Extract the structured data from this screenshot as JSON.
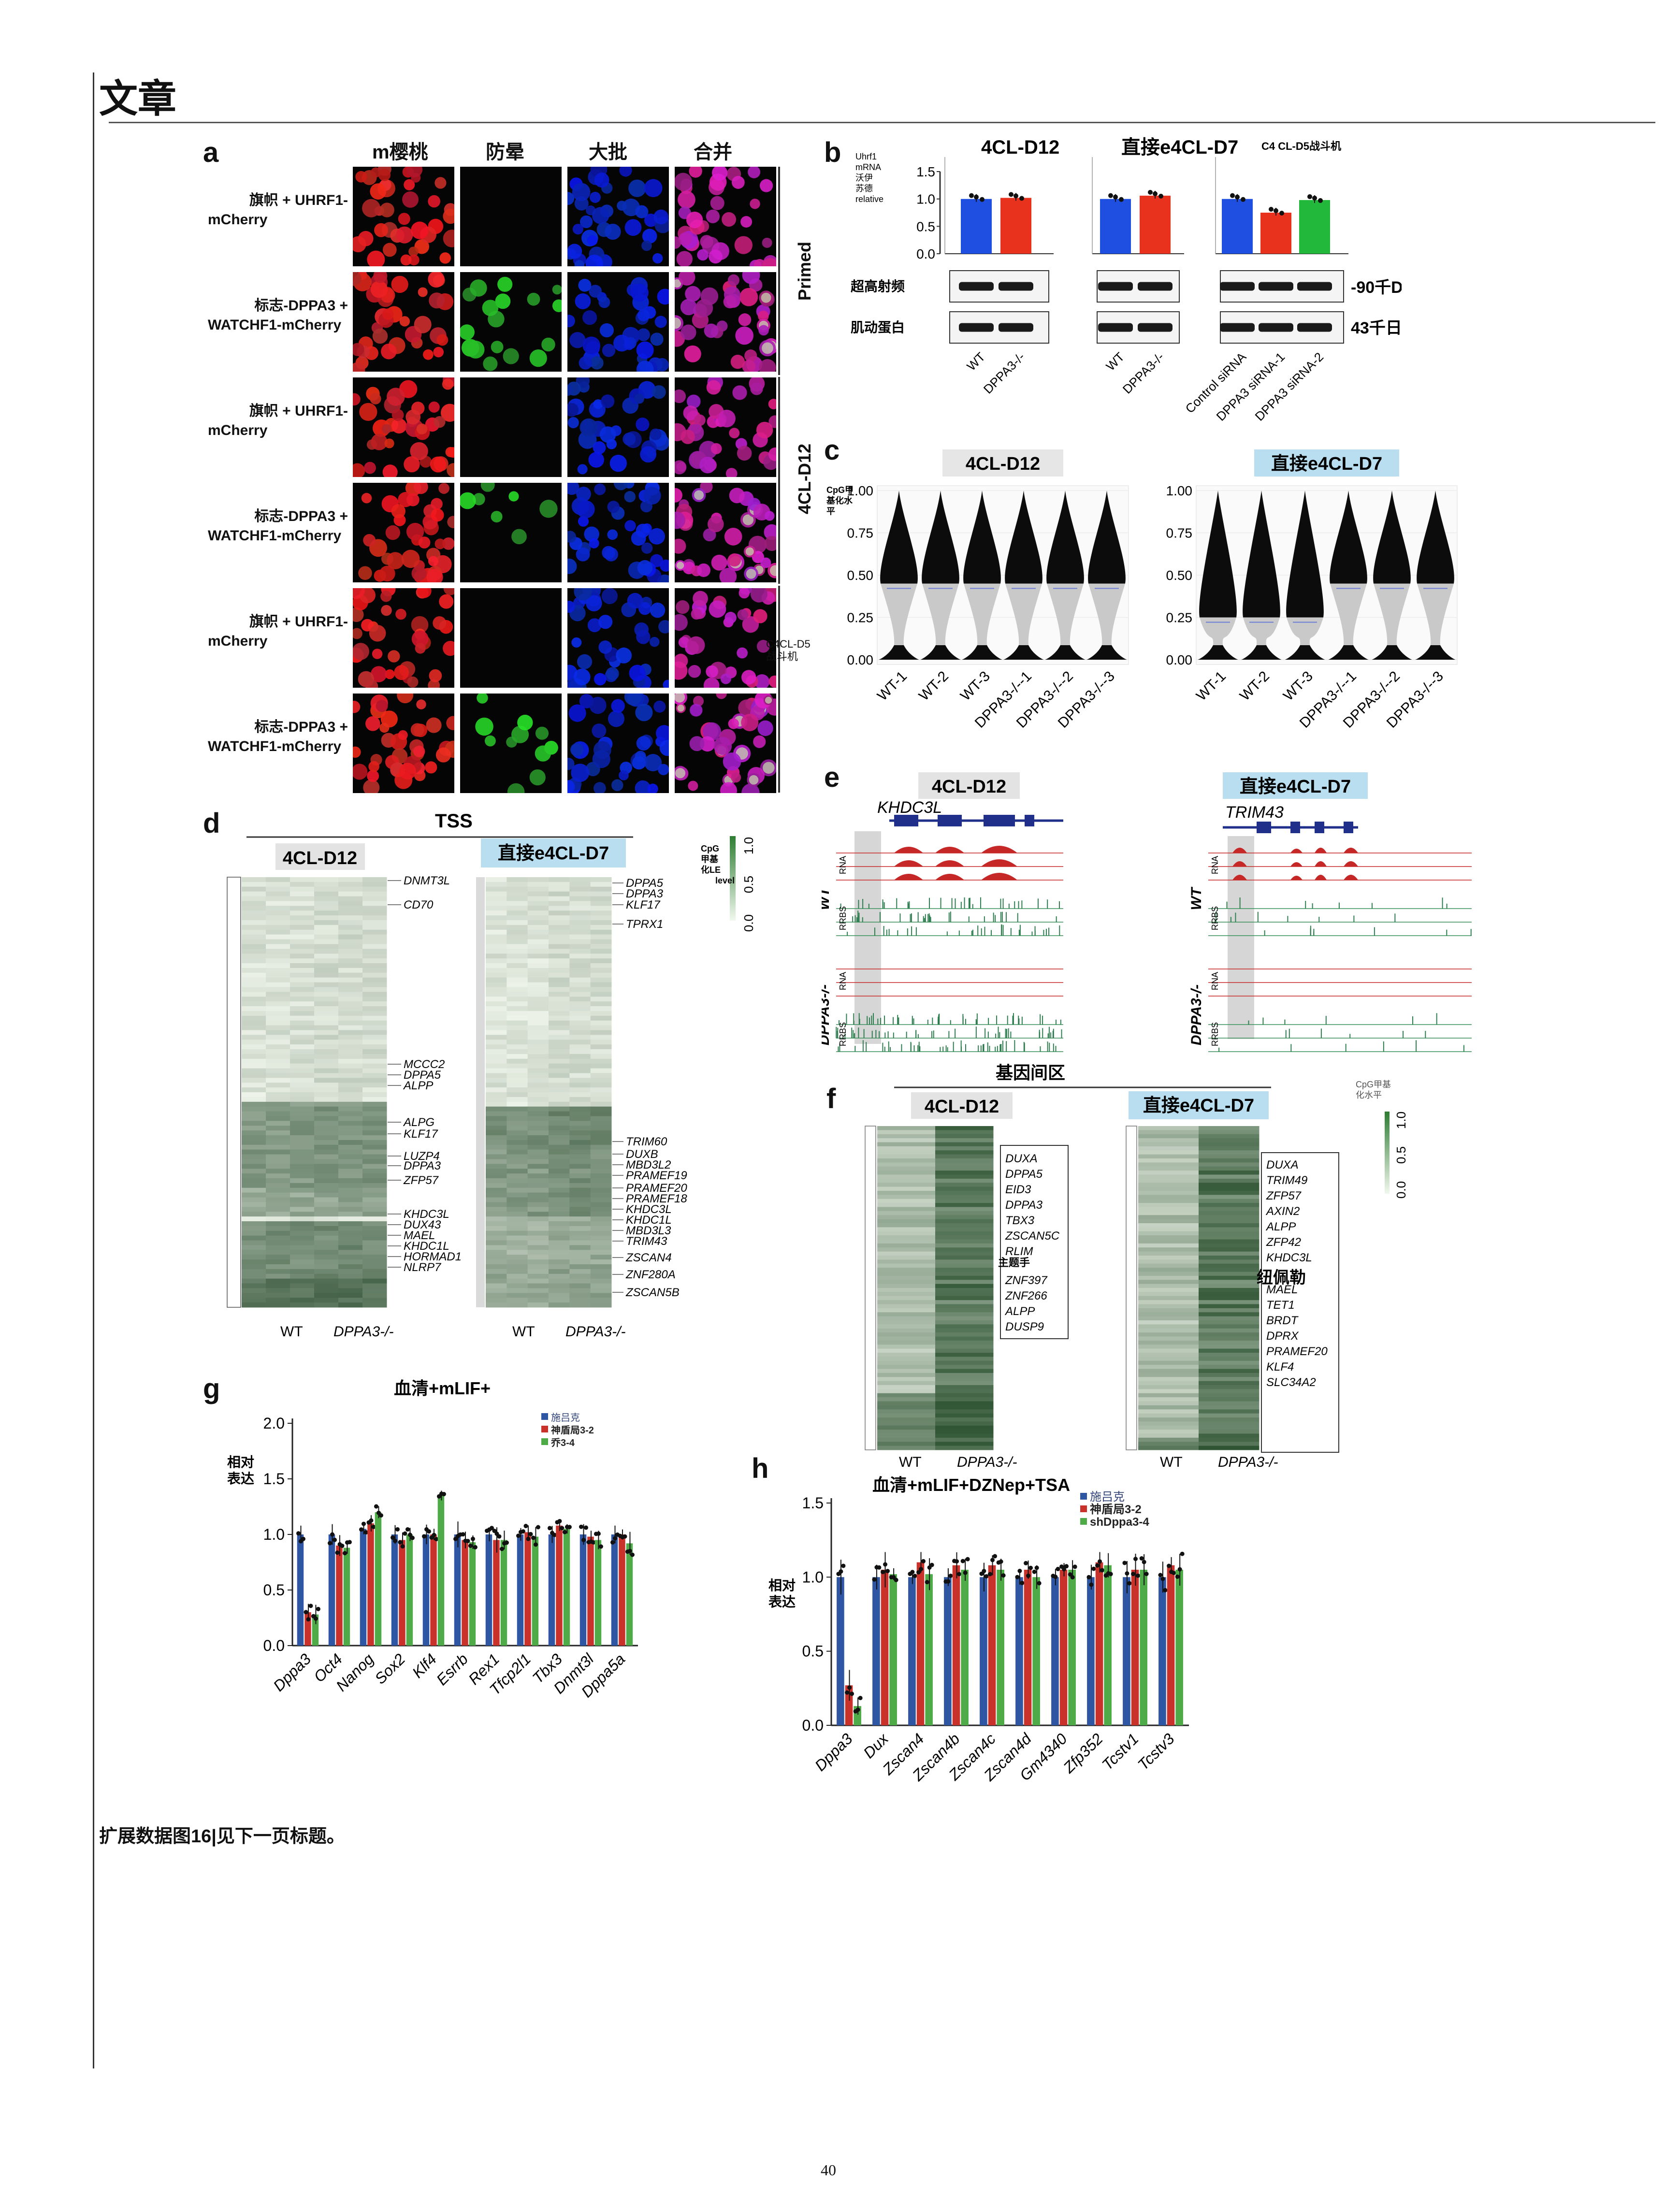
{
  "header": {
    "title": "文章",
    "page_number": "40"
  },
  "caption": "扩展数据图16|见下一页标题。",
  "panel_a": {
    "letter": "a",
    "columns": [
      "m樱桃",
      "防晕",
      "大批",
      "合并"
    ],
    "rows": [
      [
        "旗帜 + UHRF1-",
        "mCherry"
      ],
      [
        "标志-DPPA3 +",
        "WATCHF1-mCherry"
      ],
      [
        "旗帜 + UHRF1-",
        "mCherry"
      ],
      [
        "标志-DPPA3 +",
        "WATCHF1-mCherry"
      ],
      [
        "旗帜 + UHRF1-",
        "mCherry"
      ],
      [
        "标志-DPPA3 +",
        "WATCHF1-mCherry"
      ]
    ],
    "groups": [
      "Primed",
      "4CL-D12",
      "C4CL-D5",
      "战斗机"
    ]
  },
  "panel_b": {
    "letter": "b",
    "titles": [
      "4CL-D12",
      "直接e4CL-D7",
      "C4 CL-D5战斗机"
    ],
    "ylabel": [
      "Uhrf1",
      "mRNA",
      "沃伊",
      "苏德",
      "relative"
    ],
    "yticks": [
      "1.5",
      "1.0",
      "0.5",
      "0.0"
    ],
    "blot_labels": [
      "超高射频",
      "肌动蛋白"
    ],
    "kda": [
      "90千Da",
      "43千日"
    ],
    "xlabels": [
      "WT",
      "DPPA3-/-",
      "WT",
      "DPPA3-/-",
      "Control siRNA",
      "DPPA3 siRNA-1",
      "DPPA3 siRNA-2"
    ]
  },
  "panel_c": {
    "letter": "c",
    "titles": [
      "4CL-D12",
      "直接e4CL-D7"
    ],
    "ylabel": [
      "CpG甲",
      "基化水",
      "平"
    ],
    "yticks": [
      "1.00",
      "0.75",
      "0.50",
      "0.25",
      "0.00"
    ],
    "xlabels": [
      "WT-1",
      "WT-2",
      "WT-3",
      "DPPA3-/--1",
      "DPPA3-/--2",
      "DPPA3-/--3"
    ]
  },
  "panel_d": {
    "letter": "d",
    "top": "TSS",
    "titles": [
      "4CL-D12",
      "直接e4CL-D7"
    ],
    "legend_title": [
      "CpG",
      "甲基",
      "化LE",
      "level"
    ],
    "legend_ticks": [
      "1.0",
      "0.5",
      "0.0"
    ],
    "left_genes": [
      "DNMT3L",
      "CD70",
      "MCCC2",
      "DPPA5",
      "ALPP",
      "ALPG",
      "KLF17",
      "LUZP4",
      "DPPA3",
      "ZFP57",
      "KHDC3L",
      "DUX43",
      "MAEL",
      "KHDC1L",
      "HORMAD1",
      "NLRP7"
    ],
    "right_genes": [
      "DPPA5",
      "DPPA3",
      "KLF17",
      "TPRX1",
      "TRIM60",
      "DUXB",
      "MBD3L2",
      "PRAMEF19",
      "PRAMEF20",
      "PRAMEF18",
      "KHDC3L",
      "KHDC1L",
      "MBD3L3",
      "TRIM43",
      "ZSCAN4",
      "ZNF280A",
      "ZSCAN5B"
    ],
    "xlabels": [
      "WT",
      "DPPA3-/-"
    ]
  },
  "panel_e": {
    "letter": "e",
    "titles": [
      "4CL-D12",
      "直接e4CL-D7"
    ],
    "genes": [
      "KHDC3L",
      "TRIM43"
    ],
    "track_labels": [
      "RNA",
      "RRBS"
    ],
    "groups": [
      "WT",
      "DPPA3-/-"
    ]
  },
  "panel_f": {
    "letter": "f",
    "top": "基因间区",
    "titles": [
      "4CL-D12",
      "直接e4CL-D7"
    ],
    "legend_title": [
      "CpG甲基",
      "化水平"
    ],
    "legend_ticks": [
      "1.0",
      "0.5",
      "0.0"
    ],
    "left_genes": [
      "DUXA",
      "DPPA5",
      "EID3",
      "DPPA3",
      "TBX3",
      "ZSCAN5C",
      "RLIM",
      "ZNF397",
      "ZNF266",
      "ALPP",
      "DUSP9"
    ],
    "left_overlay": "主题手",
    "right_genes": [
      "DUXA",
      "TRIM49",
      "ZFP57",
      "AXIN2",
      "ALPP",
      "ZFP42",
      "KHDC3L",
      "MAEL",
      "TET1",
      "BRDT",
      "DPRX",
      "PRAMEF20",
      "KLF4",
      "SLC34A2"
    ],
    "right_overlay": "纽佩勒",
    "xlabels": [
      "WT",
      "DPPA3-/-"
    ]
  },
  "panel_g": {
    "letter": "g",
    "title": "血清+mLIF+",
    "ylabel": [
      "相对",
      "表达"
    ],
    "legend": [
      "施吕克",
      "神盾局3-2",
      "乔3-4"
    ]
  },
  "panel_h": {
    "letter": "h",
    "title": "血清+mLIF+DZNep+TSA",
    "ylabel": [
      "相对",
      "表达"
    ],
    "legend": [
      "施吕克",
      "神盾局3-2",
      "shDppa3-4"
    ]
  },
  "colors": {
    "blue": "#2f56a3",
    "red": "#c8322b",
    "green": "#4fab48",
    "heat_dark": "#2e7d32",
    "heat_light": "#eef6ea"
  },
  "chart_data": [
    {
      "type": "bar",
      "id": "b",
      "categories": [
        "WT",
        "DPPA3-/-",
        "WT",
        "DPPA3-/-",
        "Control siRNA",
        "DPPA3 siRNA-1",
        "DPPA3 siRNA-2"
      ],
      "values": [
        1.0,
        1.02,
        1.0,
        1.06,
        1.0,
        0.75,
        0.98
      ],
      "ylim": [
        0,
        1.5
      ],
      "colors": [
        "#1f4fe0",
        "#e8321e",
        "#1f4fe0",
        "#e8321e",
        "#1f4fe0",
        "#e8321e",
        "#22b83c"
      ]
    },
    {
      "type": "bar",
      "id": "g",
      "title": "血清+mLIF+",
      "categories": [
        "Dppa3",
        "Oct4",
        "Nanog",
        "Sox2",
        "Klf4",
        "Esrrb",
        "Rex1",
        "Tfcp2l1",
        "Tbx3",
        "Dnmt3l",
        "Dppa5a"
      ],
      "ylim": [
        0,
        2.0
      ],
      "yticks": [
        0.0,
        0.5,
        1.0,
        1.5,
        2.0
      ],
      "series": [
        {
          "name": "施吕克",
          "values": [
            1.0,
            1.0,
            1.05,
            1.0,
            1.0,
            1.0,
            1.0,
            1.0,
            1.0,
            1.0,
            1.0
          ]
        },
        {
          "name": "神盾局3-2",
          "values": [
            0.3,
            0.9,
            1.1,
            0.95,
            1.0,
            0.95,
            0.95,
            1.02,
            1.08,
            0.98,
            1.0
          ]
        },
        {
          "name": "乔3-4",
          "values": [
            0.28,
            0.88,
            1.2,
            1.0,
            1.35,
            0.93,
            0.95,
            0.98,
            1.05,
            0.95,
            0.92
          ]
        }
      ]
    },
    {
      "type": "bar",
      "id": "h",
      "title": "血清+mLIF+DZNep+TSA",
      "categories": [
        "Dppa3",
        "Dux",
        "Zscan4",
        "Zscan4b",
        "Zscan4c",
        "Zscan4d",
        "Gm4340",
        "Zfp352",
        "Tcstv1",
        "Tcstv3"
      ],
      "ylim": [
        0,
        1.5
      ],
      "yticks": [
        0.0,
        0.5,
        1.0,
        1.5
      ],
      "series": [
        {
          "name": "施吕克",
          "values": [
            1.0,
            1.0,
            1.0,
            1.0,
            1.0,
            1.0,
            1.0,
            1.0,
            1.0,
            1.0
          ]
        },
        {
          "name": "神盾局3-2",
          "values": [
            0.27,
            1.05,
            1.1,
            1.08,
            1.08,
            1.05,
            1.05,
            1.1,
            1.05,
            1.08
          ]
        },
        {
          "name": "shDppa3-4",
          "values": [
            0.13,
            1.02,
            1.02,
            1.05,
            1.05,
            1.0,
            1.05,
            1.08,
            1.05,
            1.05
          ]
        }
      ]
    }
  ]
}
